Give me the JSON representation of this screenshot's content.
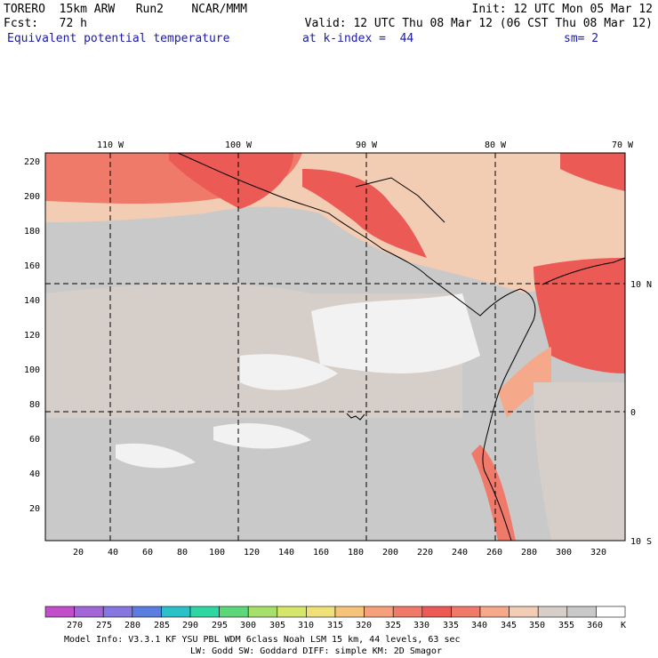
{
  "header": {
    "model": "TORERO  15km ARW   Run2    NCAR/MMM",
    "init": "Init: 12 UTC Mon 05 Mar 12",
    "fcst": "Fcst:   72 h",
    "valid": "Valid: 12 UTC Thu 08 Mar 12 (06 CST Thu 08 Mar 12)",
    "field": "Equivalent potential temperature",
    "level": "at k-index =  44",
    "smooth": "sm= 2"
  },
  "map": {
    "lon_labels": [
      "110 W",
      "100 W",
      "90 W",
      "80 W",
      "70 W"
    ],
    "lat_labels": [
      "10 N",
      "0",
      "10 S"
    ],
    "y_ticks": [
      "220",
      "200",
      "180",
      "160",
      "140",
      "120",
      "100",
      "80",
      "60",
      "40",
      "20"
    ],
    "x_ticks": [
      "20",
      "40",
      "60",
      "80",
      "100",
      "120",
      "140",
      "160",
      "180",
      "200",
      "220",
      "240",
      "260",
      "280",
      "300",
      "320"
    ]
  },
  "colorbar": {
    "levels": [
      "270",
      "275",
      "280",
      "285",
      "290",
      "295",
      "300",
      "305",
      "310",
      "315",
      "320",
      "325",
      "330",
      "335",
      "340",
      "345",
      "350",
      "355",
      "360"
    ],
    "unit": "K",
    "colors": [
      "#c24fc9",
      "#a366d6",
      "#8576e0",
      "#5a7de0",
      "#2cc0c8",
      "#2fd6a3",
      "#5ed67a",
      "#a6e06b",
      "#d6e66b",
      "#f0e07a",
      "#f5c47a",
      "#f5a07a",
      "#f07a6a",
      "#eb5a55",
      "#f07a6a",
      "#f5a88a",
      "#f3ccb4",
      "#d6cfc9",
      "#c9c9c9",
      "#ffffff"
    ]
  },
  "footer": {
    "line1": "Model Info: V3.3.1   KF      YSU PBL  WDM 6class  Noah LSM  15 km,   44 levels,   63 sec",
    "line2": "LW: Godd SW: Goddard DIFF: simple KM: 2D Smagor"
  }
}
